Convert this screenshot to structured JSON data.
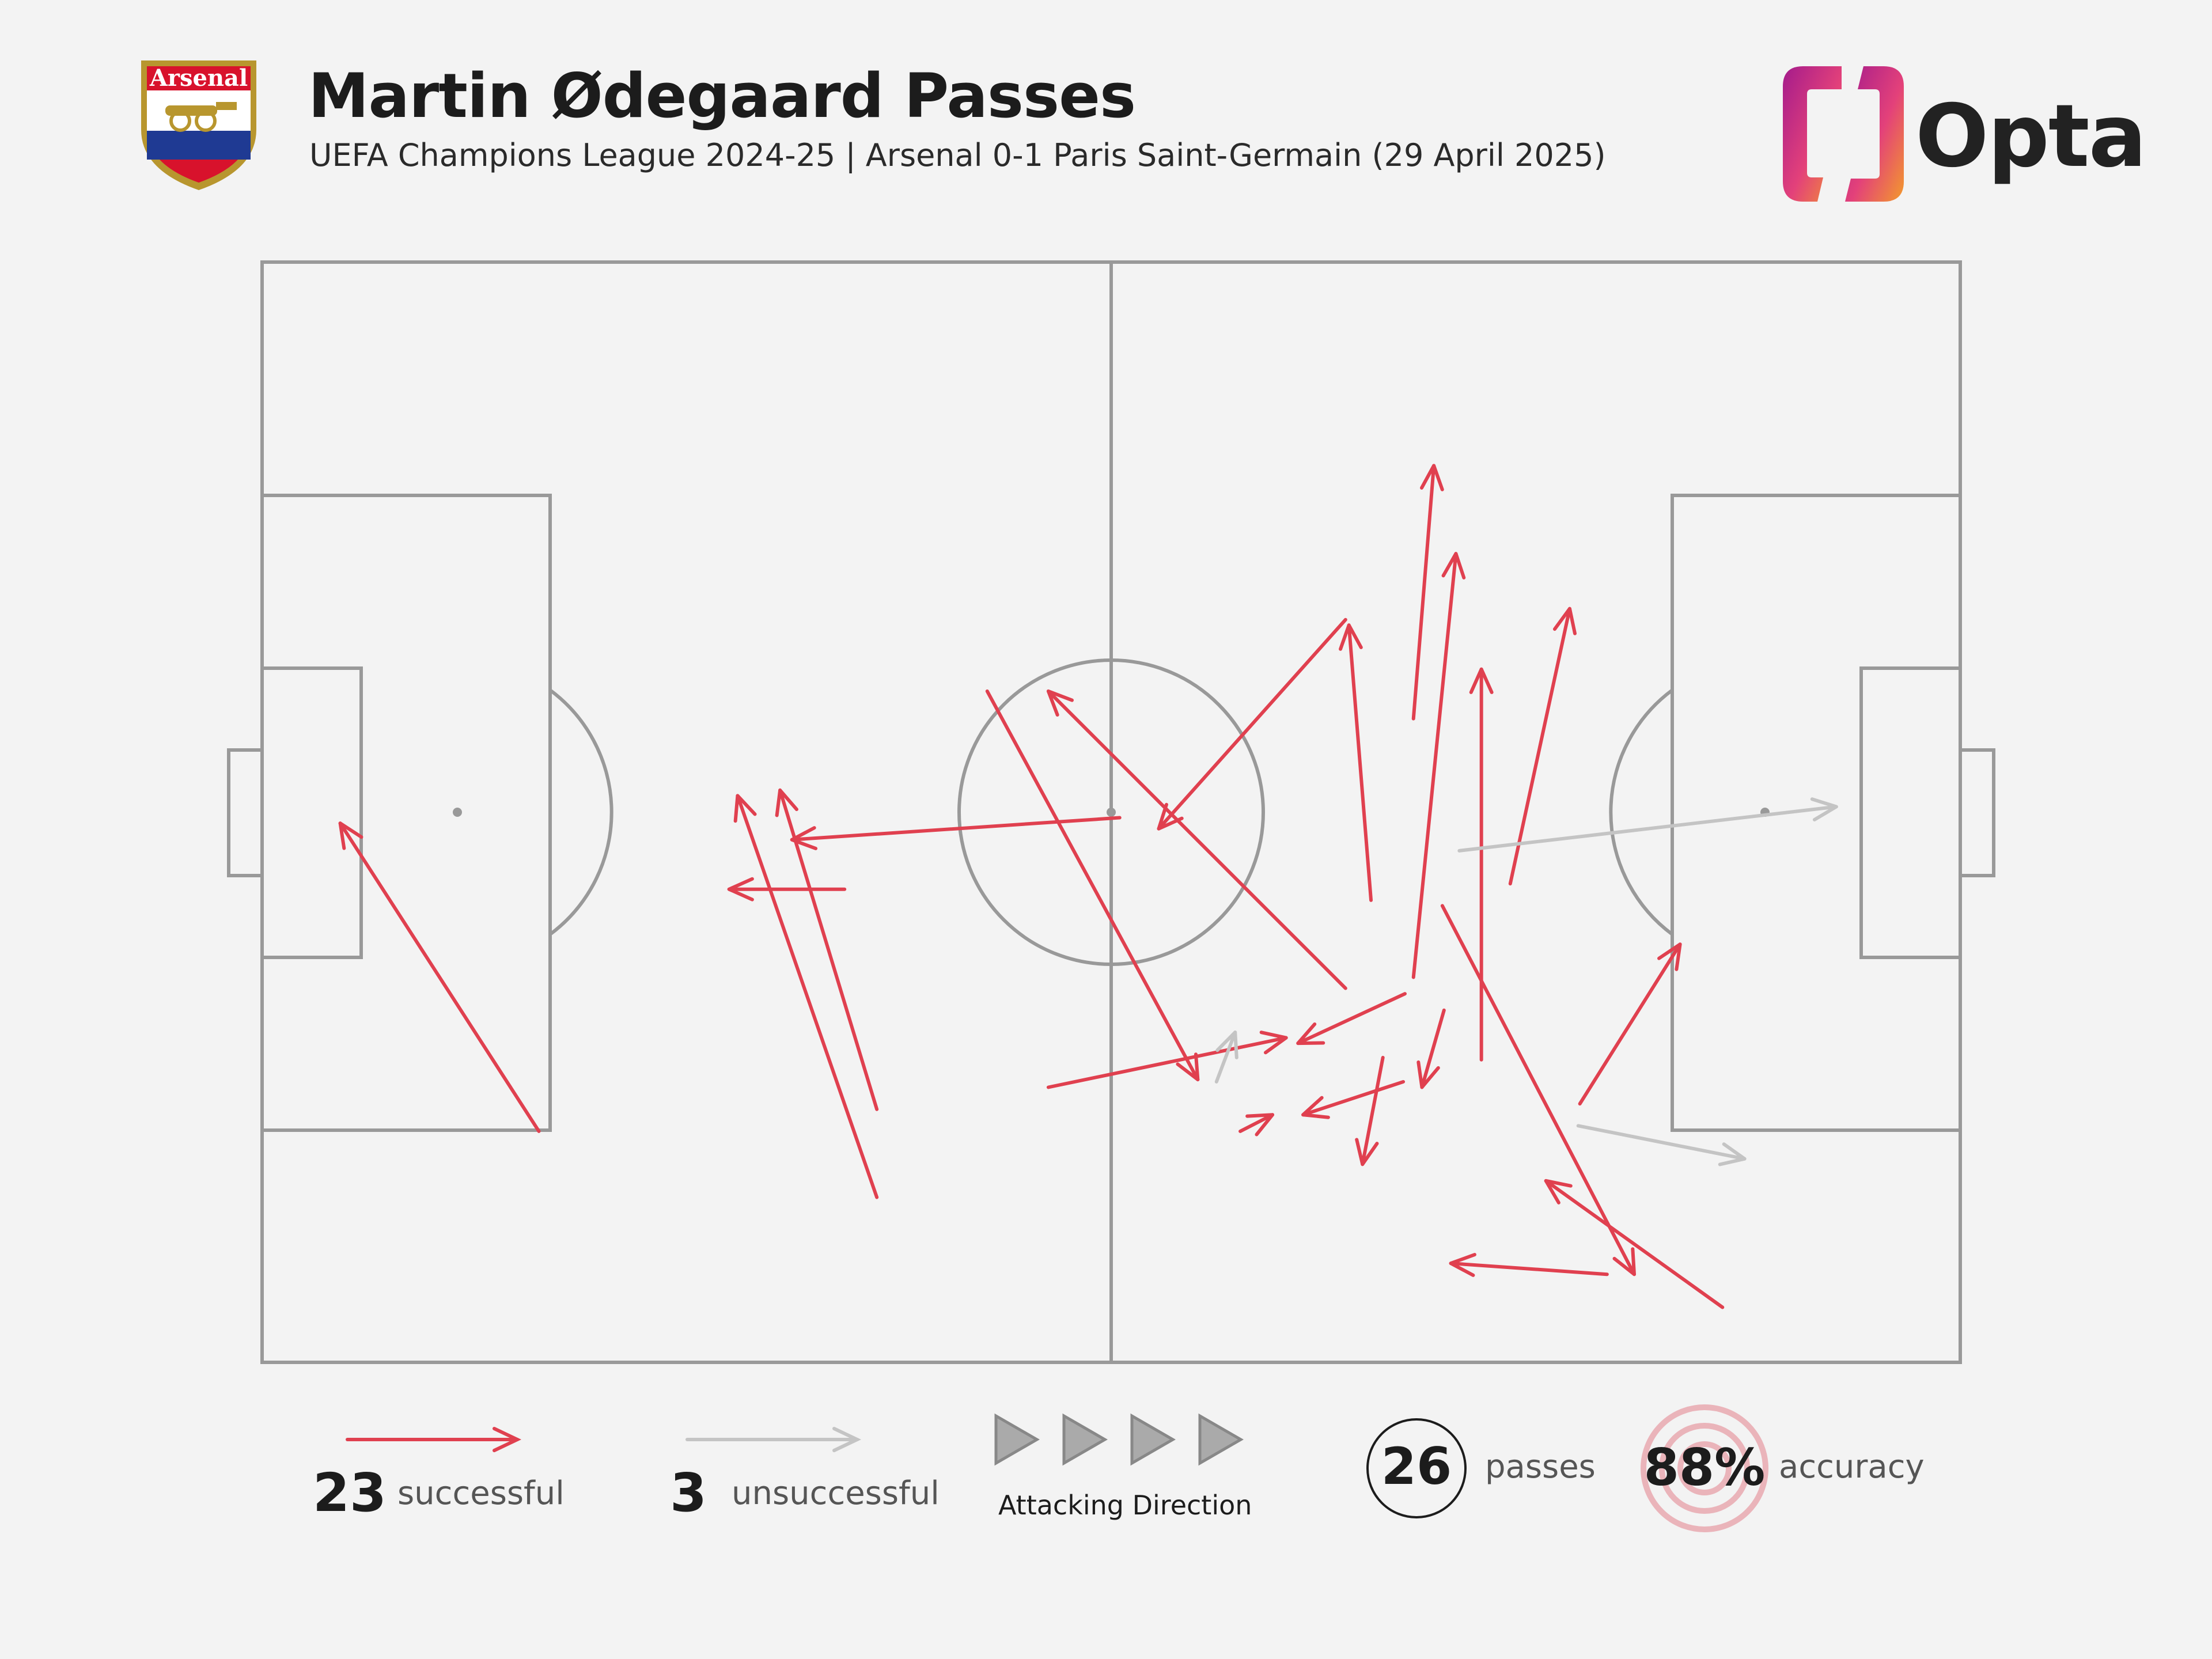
{
  "header": {
    "title": "Martin Ødegaard Passes",
    "subtitle": "UEFA Champions League 2024-25 | Arsenal 0-1 Paris Saint-Germain (29 April 2025)",
    "crest_text": "Arsenal",
    "brand": "Opta"
  },
  "colors": {
    "successful": "#e0404f",
    "unsuccessful": "#c4c4c4",
    "pitch_line": "#999999",
    "background": "#f3f3f3"
  },
  "legend": {
    "successful_count": "23",
    "successful_label": "successful",
    "unsuccessful_count": "3",
    "unsuccessful_label": "unsuccessful",
    "direction_label": "Attacking Direction",
    "passes_count": "26",
    "passes_label": "passes",
    "accuracy_value": "88%",
    "accuracy_label": "accuracy"
  },
  "chart_data": {
    "type": "scatter",
    "title": "Martin Ødegaard Passes",
    "subtitle": "UEFA Champions League 2024-25 | Arsenal 0-1 Paris Saint-Germain (29 April 2025)",
    "xlabel": "",
    "ylabel": "",
    "xlim": [
      0,
      100
    ],
    "ylim": [
      0,
      100
    ],
    "attacking_direction": "left-to-right",
    "passes": [
      {
        "x": 16.3,
        "y": 79.0,
        "end_x": 4.6,
        "end_y": 51.0,
        "outcome": "successful"
      },
      {
        "x": 36.2,
        "y": 77.0,
        "end_x": 30.5,
        "end_y": 48.0,
        "outcome": "successful"
      },
      {
        "x": 36.2,
        "y": 85.0,
        "end_x": 28.0,
        "end_y": 48.5,
        "outcome": "successful"
      },
      {
        "x": 34.3,
        "y": 57.0,
        "end_x": 27.5,
        "end_y": 57.0,
        "outcome": "successful"
      },
      {
        "x": 50.5,
        "y": 50.5,
        "end_x": 31.2,
        "end_y": 52.5,
        "outcome": "successful"
      },
      {
        "x": 42.7,
        "y": 39.0,
        "end_x": 55.1,
        "end_y": 74.3,
        "outcome": "successful"
      },
      {
        "x": 63.8,
        "y": 66.0,
        "end_x": 46.3,
        "end_y": 39.0,
        "outcome": "successful"
      },
      {
        "x": 63.8,
        "y": 32.5,
        "end_x": 52.8,
        "end_y": 51.5,
        "outcome": "successful"
      },
      {
        "x": 65.3,
        "y": 58.0,
        "end_x": 64.0,
        "end_y": 33.0,
        "outcome": "successful"
      },
      {
        "x": 67.8,
        "y": 41.5,
        "end_x": 69.0,
        "end_y": 18.5,
        "outcome": "successful"
      },
      {
        "x": 67.8,
        "y": 65.0,
        "end_x": 70.3,
        "end_y": 26.5,
        "outcome": "successful"
      },
      {
        "x": 71.8,
        "y": 72.5,
        "end_x": 71.8,
        "end_y": 37.0,
        "outcome": "successful"
      },
      {
        "x": 73.5,
        "y": 56.5,
        "end_x": 77.0,
        "end_y": 31.5,
        "outcome": "successful"
      },
      {
        "x": 46.3,
        "y": 75.0,
        "end_x": 60.3,
        "end_y": 70.5,
        "outcome": "successful"
      },
      {
        "x": 67.3,
        "y": 66.5,
        "end_x": 61.0,
        "end_y": 71.0,
        "outcome": "successful"
      },
      {
        "x": 66.0,
        "y": 72.3,
        "end_x": 64.8,
        "end_y": 82.0,
        "outcome": "successful"
      },
      {
        "x": 69.6,
        "y": 68.0,
        "end_x": 68.3,
        "end_y": 75.0,
        "outcome": "successful"
      },
      {
        "x": 67.2,
        "y": 74.5,
        "end_x": 61.3,
        "end_y": 77.5,
        "outcome": "successful"
      },
      {
        "x": 57.6,
        "y": 79.0,
        "end_x": 59.5,
        "end_y": 77.5,
        "outcome": "successful"
      },
      {
        "x": 69.5,
        "y": 58.5,
        "end_x": 80.8,
        "end_y": 92.0,
        "outcome": "successful"
      },
      {
        "x": 86.0,
        "y": 95.0,
        "end_x": 75.6,
        "end_y": 83.5,
        "outcome": "successful"
      },
      {
        "x": 79.2,
        "y": 92.0,
        "end_x": 70.0,
        "end_y": 91.0,
        "outcome": "successful"
      },
      {
        "x": 77.6,
        "y": 76.5,
        "end_x": 83.5,
        "end_y": 62.0,
        "outcome": "successful"
      },
      {
        "x": 70.5,
        "y": 53.5,
        "end_x": 92.7,
        "end_y": 49.5,
        "outcome": "unsuccessful"
      },
      {
        "x": 77.5,
        "y": 78.5,
        "end_x": 87.3,
        "end_y": 81.5,
        "outcome": "unsuccessful"
      },
      {
        "x": 56.2,
        "y": 74.5,
        "end_x": 57.3,
        "end_y": 70.0,
        "outcome": "unsuccessful"
      }
    ]
  }
}
